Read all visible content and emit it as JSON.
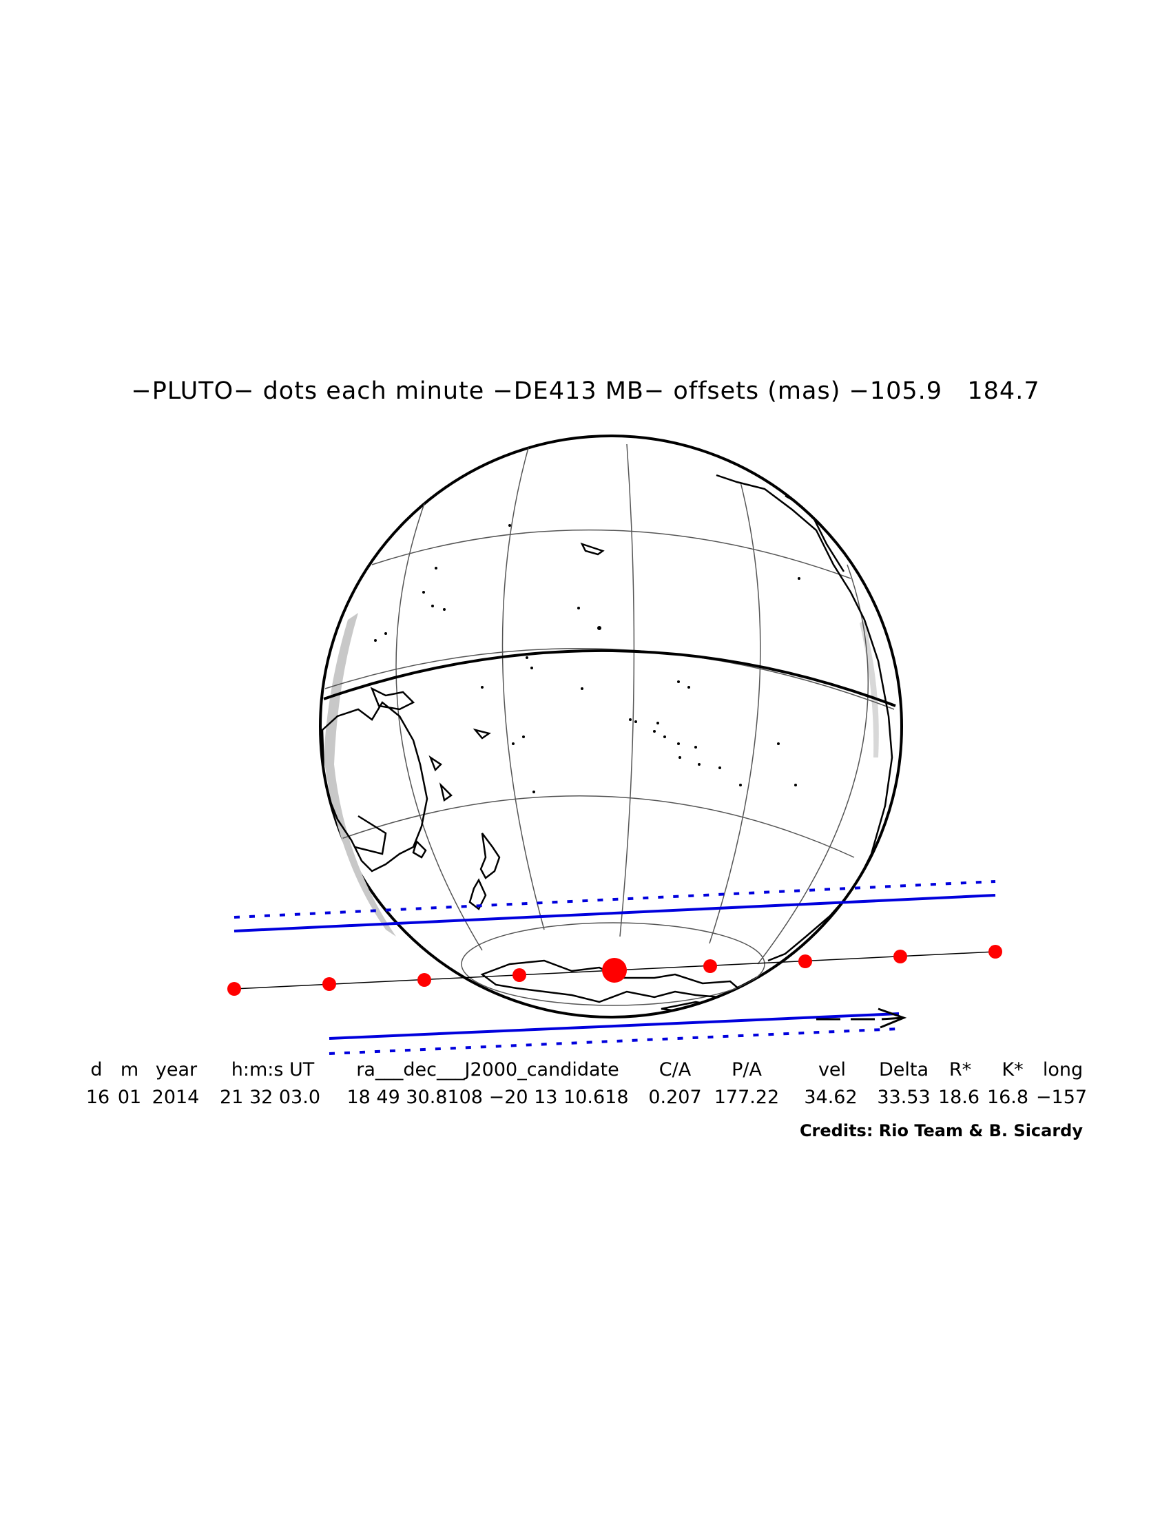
{
  "title": "−PLUTO− dots each minute −DE413 MB− offsets (mas) −105.9   184.7",
  "table": {
    "headers": [
      "d",
      "m",
      "year",
      "h:m:s UT",
      "ra___dec___J2000_candidate",
      "C/A",
      "P/A",
      "vel",
      "Delta",
      "R*",
      "K*",
      "long"
    ],
    "values": [
      "16",
      "01",
      "2014",
      "21 32 03.0",
      "18 49 30.8108 −20 13 10.618",
      "0.207",
      "177.22",
      "34.62",
      "33.53",
      "18.6",
      "16.8",
      "−157"
    ]
  },
  "credits": "Credits: Rio Team & B. Sicardy",
  "colors": {
    "path": "#ff0000",
    "limits": "#0000dd",
    "grid": "#555555",
    "coast": "#000000"
  }
}
